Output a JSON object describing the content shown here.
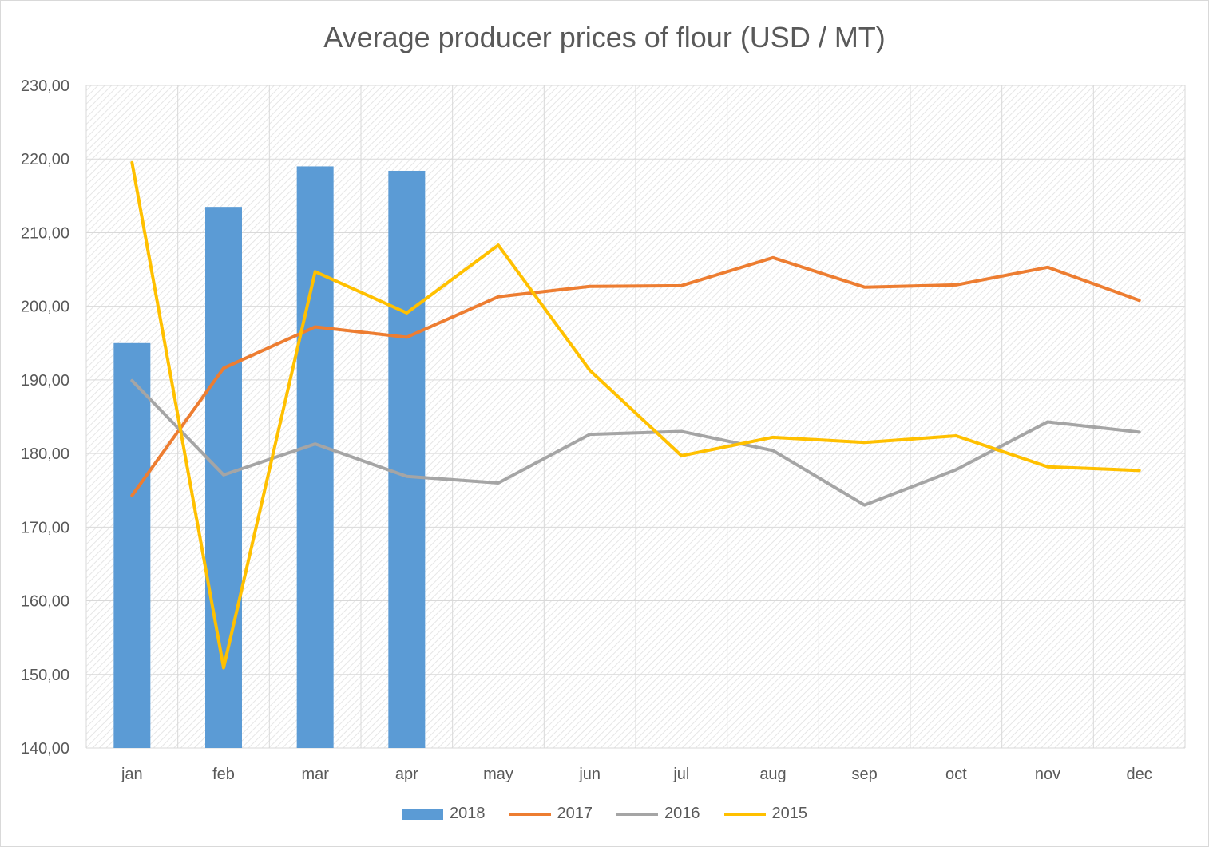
{
  "chart_data": {
    "type": "bar",
    "title": "Average producer prices of flour (USD / MT)",
    "xlabel": "",
    "ylabel": "",
    "categories": [
      "jan",
      "feb",
      "mar",
      "apr",
      "may",
      "jun",
      "jul",
      "aug",
      "sep",
      "oct",
      "nov",
      "dec"
    ],
    "ylim": [
      140,
      230
    ],
    "ytick_values": [
      140,
      150,
      160,
      170,
      180,
      190,
      200,
      210,
      220,
      230
    ],
    "ytick_labels": [
      "140,00",
      "150,00",
      "160,00",
      "170,00",
      "180,00",
      "190,00",
      "200,00",
      "210,00",
      "220,00",
      "230,00"
    ],
    "grid": true,
    "legend_position": "bottom",
    "series": [
      {
        "name": "2018",
        "type": "bar",
        "color": "#5b9bd5",
        "values": [
          195.0,
          213.5,
          219.0,
          218.4,
          null,
          null,
          null,
          null,
          null,
          null,
          null,
          null
        ]
      },
      {
        "name": "2017",
        "type": "line",
        "color": "#ed7d31",
        "values": [
          174.3,
          191.6,
          197.2,
          195.8,
          201.3,
          202.7,
          202.8,
          206.6,
          202.6,
          202.9,
          205.3,
          200.8
        ]
      },
      {
        "name": "2016",
        "type": "line",
        "color": "#a5a5a5",
        "values": [
          189.9,
          177.1,
          181.3,
          176.9,
          176.0,
          182.6,
          183.0,
          180.4,
          173.0,
          177.8,
          184.3,
          182.9
        ]
      },
      {
        "name": "2015",
        "type": "line",
        "color": "#ffc000",
        "values": [
          219.5,
          150.9,
          204.7,
          199.1,
          208.3,
          191.3,
          179.7,
          182.2,
          181.5,
          182.4,
          178.2,
          177.7
        ]
      }
    ]
  }
}
